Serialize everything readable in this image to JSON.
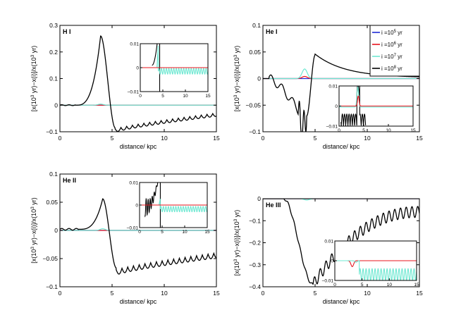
{
  "colors": {
    "blue": "#1f2bd6",
    "red": "#e8141e",
    "cyan": "#6fe8d2",
    "black": "#000000"
  },
  "legend": {
    "entries": [
      {
        "prefix": "i =10",
        "exp": "5",
        "suffix": " yr",
        "color_key": "blue"
      },
      {
        "prefix": "i =10",
        "exp": "6",
        "suffix": " yr",
        "color_key": "red"
      },
      {
        "prefix": "i =10",
        "exp": "7",
        "suffix": " yr",
        "color_key": "cyan"
      },
      {
        "prefix": "i =10",
        "exp": "8",
        "suffix": " yr",
        "color_key": "black"
      }
    ]
  },
  "chart_data": [
    {
      "type": "line",
      "title": "H I",
      "xlabel": "distance/ kpc",
      "ylabel_parts": [
        "[x(10",
        "3",
        " yr)−x(i)]/x(10",
        "3",
        " yr)"
      ],
      "xlim": [
        0,
        15
      ],
      "ylim": [
        -0.1,
        0.3
      ],
      "xticks": [
        "0",
        "5",
        "10",
        "15"
      ],
      "yticks": [
        "−0.1",
        "0",
        "0.1",
        "0.2",
        "0.3"
      ],
      "series": [
        {
          "name": "i=1e8 yr",
          "color_key": "black",
          "kind": "peak",
          "params": {
            "base": 0.0,
            "peak_x": 3.9,
            "peak_y": 0.26,
            "rise_start": 1.5,
            "drop_end": 5.3,
            "dip_y": -0.1,
            "dip_x": 5.6,
            "end_y": -0.03,
            "osc_amp": 0.012,
            "osc_period": 0.55
          }
        },
        {
          "name": "i=1e7 yr",
          "color_key": "cyan",
          "kind": "flat",
          "params": {
            "y": 0.0,
            "bump_x": 3.9,
            "bump_y": 0.004
          }
        },
        {
          "name": "i=1e6 yr",
          "color_key": "red",
          "kind": "flat",
          "params": {
            "y": 0.0
          }
        },
        {
          "name": "i=1e5 yr",
          "color_key": "blue",
          "kind": "flat",
          "params": {
            "y": 0.0
          }
        }
      ],
      "inset": {
        "xlim": [
          0,
          15
        ],
        "ylim": [
          -0.01,
          0.01
        ],
        "xticks": [
          "0",
          "5",
          "10",
          "15"
        ],
        "yticks": [
          "0.01",
          "0",
          "−0.01"
        ],
        "series": [
          {
            "color_key": "black",
            "kind": "inset_black",
            "params": {
              "x_vertical": 4.3,
              "start_x": 2.6,
              "start_y": 0.001
            }
          },
          {
            "color_key": "cyan",
            "kind": "inset_cyan",
            "params": {
              "x_jump": 4.0,
              "peak_y": 0.01,
              "mean": -0.0015,
              "amp": 0.0012,
              "period": 0.55
            }
          },
          {
            "color_key": "red",
            "kind": "flat",
            "params": {
              "y": 0.0
            }
          }
        ]
      }
    },
    {
      "type": "line",
      "title": "He I",
      "xlabel": "distance/ kpc",
      "ylabel_parts": [
        "[x(10",
        "3",
        " yr)−x(i)]/x(10",
        "3",
        " yr)"
      ],
      "xlim": [
        0,
        15
      ],
      "ylim": [
        -0.1,
        0.1
      ],
      "xticks": [
        "0",
        "5",
        "10",
        "15"
      ],
      "yticks": [
        "−0.1",
        "−0.05",
        "0",
        "0.05",
        "0.1"
      ],
      "series": [
        {
          "name": "i=1e8 yr",
          "color_key": "black",
          "kind": "hei",
          "params": {
            "min_y": -0.094,
            "min_x": 3.9,
            "peak_y": 0.044,
            "peak_x": 5.0,
            "end_y": 0.002
          }
        },
        {
          "name": "i=1e7 yr",
          "color_key": "cyan",
          "kind": "flat",
          "params": {
            "y": 0.0,
            "bump_x": 4.0,
            "bump_y": 0.018
          }
        },
        {
          "name": "i=1e6 yr",
          "color_key": "red",
          "kind": "flat",
          "params": {
            "y": 0.0,
            "bump_x": 4.0,
            "bump_y": 0.004
          }
        },
        {
          "name": "i=1e5 yr",
          "color_key": "blue",
          "kind": "flat",
          "params": {
            "y": 0.0
          }
        }
      ],
      "inset": {
        "xlim": [
          0,
          15
        ],
        "ylim": [
          -0.01,
          0.01
        ],
        "xticks": [
          "0",
          "5",
          "10",
          "15"
        ],
        "yticks": [
          "0.01",
          "0",
          "−0.01"
        ],
        "series": [
          {
            "color_key": "black",
            "kind": "inset_hei_black",
            "params": {
              "x_start": 0.4,
              "x_end": 5.4
            }
          },
          {
            "color_key": "cyan",
            "kind": "inset_hei_cyan",
            "params": {
              "x_peak": 3.8,
              "peak_y": 0.01
            }
          },
          {
            "color_key": "red",
            "kind": "inset_hei_red",
            "params": {
              "x_peak": 3.9,
              "peak_y": 0.005
            }
          }
        ]
      }
    },
    {
      "type": "line",
      "title": "He II",
      "xlabel": "distance/ kpc",
      "ylabel_parts": [
        "[x(10",
        "3",
        " yr)−x(i)]/x(10",
        "3",
        " yr)"
      ],
      "xlim": [
        0,
        15
      ],
      "ylim": [
        -0.1,
        0.1
      ],
      "xticks": [
        "0",
        "5",
        "10",
        "15"
      ],
      "yticks": [
        "−0.1",
        "−0.05",
        "0",
        "0.05",
        "0.1"
      ],
      "series": [
        {
          "name": "i=1e8 yr",
          "color_key": "black",
          "kind": "peak",
          "params": {
            "base": 0.002,
            "peak_x": 4.1,
            "peak_y": 0.056,
            "rise_start": 1.8,
            "drop_end": 5.4,
            "dip_y": -0.078,
            "dip_x": 6.0,
            "end_y": -0.04,
            "osc_amp": 0.009,
            "osc_period": 0.55
          }
        },
        {
          "name": "i=1e7 yr",
          "color_key": "cyan",
          "kind": "flat",
          "params": {
            "y": 0.0,
            "bump_x": 4.1,
            "bump_y": 0.003
          }
        },
        {
          "name": "i=1e6 yr",
          "color_key": "red",
          "kind": "flat",
          "params": {
            "y": 0.0
          }
        },
        {
          "name": "i=1e5 yr",
          "color_key": "blue",
          "kind": "flat",
          "params": {
            "y": 0.0
          }
        }
      ],
      "inset": {
        "xlim": [
          0,
          15
        ],
        "ylim": [
          -0.01,
          0.01
        ],
        "xticks": [
          "0",
          "5",
          "10",
          "15"
        ],
        "yticks": [
          "0.01",
          "0",
          "−0.01"
        ],
        "series": [
          {
            "color_key": "black",
            "kind": "inset_black2",
            "params": {
              "x_vertical": 4.6,
              "start_x": 1.2
            }
          },
          {
            "color_key": "cyan",
            "kind": "inset_cyan",
            "params": {
              "x_jump": 4.6,
              "peak_y": 0.003,
              "mean": -0.0018,
              "amp": 0.0012,
              "period": 0.55
            }
          },
          {
            "color_key": "red",
            "kind": "flat",
            "params": {
              "y": 0.0
            }
          }
        ]
      }
    },
    {
      "type": "line",
      "title": "He III",
      "xlabel": "distance/ kpc",
      "ylabel_parts": [
        "[x(10",
        "3",
        " yr)−x(i)]/x(10",
        "3",
        " yr)"
      ],
      "xlim": [
        0,
        15
      ],
      "ylim": [
        -0.4,
        0.0
      ],
      "xticks": [
        "0",
        "5",
        "10",
        "15"
      ],
      "yticks": [
        "−0.4",
        "−0.3",
        "−0.2",
        "−0.1",
        "0"
      ],
      "series": [
        {
          "name": "i=1e8 yr",
          "color_key": "black",
          "kind": "heiii",
          "params": {
            "start_drop": 2.0,
            "min_x": 4.8,
            "min_y": -0.39,
            "end_y": -0.06,
            "osc_amp": 0.025,
            "osc_period": 0.55
          }
        },
        {
          "name": "i=1e7 yr",
          "color_key": "cyan",
          "kind": "flat",
          "params": {
            "y": 0.0,
            "bump_x": 4.2,
            "bump_y": -0.006
          }
        },
        {
          "name": "i=1e6 yr",
          "color_key": "red",
          "kind": "flat",
          "params": {
            "y": 0.0
          }
        },
        {
          "name": "i=1e5 yr",
          "color_key": "blue",
          "kind": "flat",
          "params": {
            "y": 0.0
          }
        }
      ],
      "inset": {
        "xlim": [
          0,
          15
        ],
        "ylim": [
          -0.01,
          0.01
        ],
        "xticks": [
          "0",
          "5",
          "10",
          "15"
        ],
        "yticks": [
          "0.01",
          "0",
          "−0.01"
        ],
        "series": [
          {
            "color_key": "red",
            "kind": "inset_heiii_red",
            "params": {
              "dip_x": 3.2,
              "dip_y": -0.003
            }
          },
          {
            "color_key": "cyan",
            "kind": "inset_heiii_cyan",
            "params": {
              "x_start": 4.5,
              "mean": -0.007,
              "amp": 0.003,
              "period": 0.55
            }
          }
        ]
      }
    }
  ]
}
